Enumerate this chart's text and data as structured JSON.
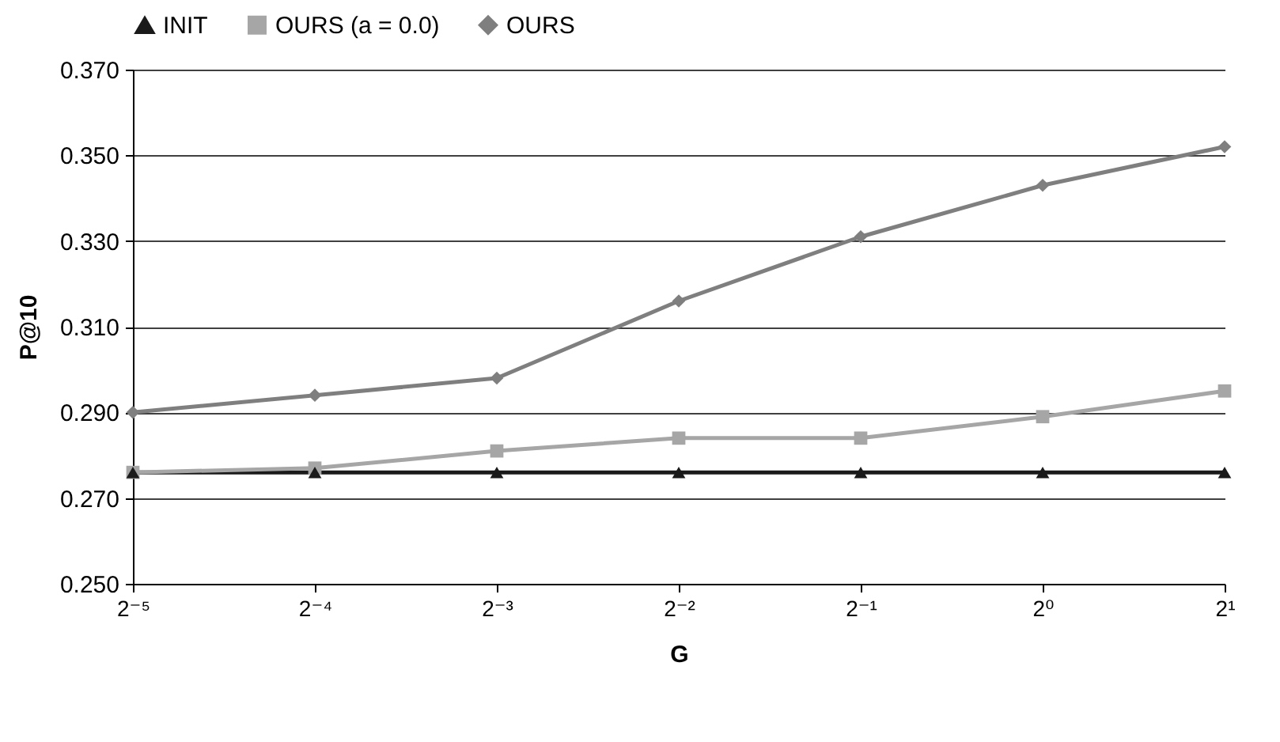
{
  "chart_data": {
    "type": "line",
    "xlabel": "G",
    "ylabel": "P@10",
    "x": [
      0.03125,
      0.0625,
      0.125,
      0.25,
      0.5,
      1,
      2
    ],
    "log": "x",
    "xlim": [
      0.03125,
      2
    ],
    "xticks": [
      {
        "value": 0.03125,
        "label": "2⁻⁵"
      },
      {
        "value": 0.0625,
        "label": "2⁻⁴"
      },
      {
        "value": 0.125,
        "label": "2⁻³"
      },
      {
        "value": 0.25,
        "label": "2⁻²"
      },
      {
        "value": 0.5,
        "label": "2⁻¹"
      },
      {
        "value": 1,
        "label": "2⁰"
      },
      {
        "value": 2,
        "label": "2¹"
      }
    ],
    "ylim": [
      0.25,
      0.37
    ],
    "yticks": [
      {
        "value": 0.25,
        "label": "0.250"
      },
      {
        "value": 0.27,
        "label": "0.270"
      },
      {
        "value": 0.29,
        "label": "0.290"
      },
      {
        "value": 0.31,
        "label": "0.310"
      },
      {
        "value": 0.33,
        "label": "0.330"
      },
      {
        "value": 0.35,
        "label": "0.350"
      },
      {
        "value": 0.37,
        "label": "0.370"
      }
    ],
    "grid": "y",
    "legend": "top",
    "line_style": "solid",
    "series": [
      {
        "name": "INIT",
        "color": "#1a1a1a",
        "marker": "triangle",
        "values": [
          0.276,
          0.276,
          0.276,
          0.276,
          0.276,
          0.276,
          0.276
        ]
      },
      {
        "name": "OURS (a = 0.0)",
        "color": "#a6a6a6",
        "marker": "square",
        "values": [
          0.276,
          0.277,
          0.281,
          0.284,
          0.284,
          0.289,
          0.295
        ]
      },
      {
        "name": "OURS",
        "color": "#7f7f7f",
        "marker": "diamond",
        "values": [
          0.29,
          0.294,
          0.298,
          0.316,
          0.331,
          0.343,
          0.352
        ]
      }
    ]
  }
}
